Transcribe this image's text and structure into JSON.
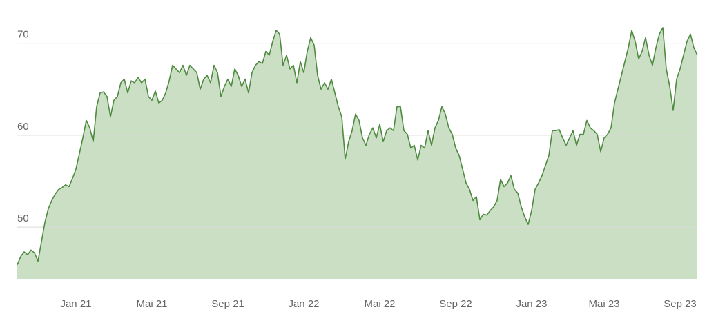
{
  "chart_data": {
    "type": "area",
    "categories": [
      null,
      null,
      null,
      null,
      null,
      null,
      null,
      null,
      null,
      null,
      null,
      null,
      null,
      null,
      null,
      null,
      null,
      "Jan 21",
      null,
      null,
      null,
      null,
      null,
      null,
      null,
      null,
      null,
      null,
      null,
      null,
      null,
      null,
      null,
      null,
      null,
      null,
      null,
      null,
      null,
      "Mai 21",
      null,
      null,
      null,
      null,
      null,
      null,
      null,
      null,
      null,
      null,
      null,
      null,
      null,
      null,
      null,
      null,
      null,
      null,
      null,
      null,
      null,
      "Sep 21",
      null,
      null,
      null,
      null,
      null,
      null,
      null,
      null,
      null,
      null,
      null,
      null,
      null,
      null,
      null,
      null,
      null,
      null,
      null,
      null,
      null,
      "Jan 22",
      null,
      null,
      null,
      null,
      null,
      null,
      null,
      null,
      null,
      null,
      null,
      null,
      null,
      null,
      null,
      null,
      null,
      null,
      null,
      null,
      null,
      "Mai 22",
      null,
      null,
      null,
      null,
      null,
      null,
      null,
      null,
      null,
      null,
      null,
      null,
      null,
      null,
      null,
      null,
      null,
      null,
      null,
      null,
      null,
      "Sep 22",
      null,
      null,
      null,
      null,
      null,
      null,
      null,
      null,
      null,
      null,
      null,
      null,
      null,
      null,
      null,
      null,
      null,
      null,
      null,
      null,
      null,
      "Jan 23",
      null,
      null,
      null,
      null,
      null,
      null,
      null,
      null,
      null,
      null,
      null,
      null,
      null,
      null,
      null,
      null,
      null,
      null,
      null,
      null,
      "Mai 23",
      null,
      null,
      null,
      null,
      null,
      null,
      null,
      null,
      null,
      null,
      null,
      null,
      null,
      null,
      null,
      null,
      null,
      null,
      null,
      null,
      null,
      "Sep 23",
      null,
      null,
      null,
      null,
      null
    ],
    "values": [
      45.9,
      46.8,
      47.3,
      47.0,
      47.5,
      47.2,
      46.3,
      48.4,
      50.5,
      52.0,
      52.9,
      53.6,
      54.1,
      54.3,
      54.6,
      54.4,
      55.3,
      56.3,
      58.0,
      59.7,
      61.6,
      60.8,
      59.3,
      63.1,
      64.6,
      64.7,
      64.2,
      62.0,
      63.8,
      64.2,
      65.7,
      66.1,
      64.6,
      65.9,
      65.7,
      66.3,
      65.7,
      66.1,
      64.2,
      63.8,
      64.8,
      63.5,
      63.8,
      64.6,
      65.9,
      67.6,
      67.2,
      66.8,
      67.6,
      66.5,
      67.6,
      67.2,
      66.8,
      65.0,
      66.1,
      66.5,
      65.7,
      67.6,
      66.8,
      64.2,
      65.3,
      66.1,
      65.3,
      67.2,
      66.5,
      65.3,
      66.1,
      64.6,
      66.8,
      67.6,
      68.0,
      67.8,
      69.1,
      68.7,
      70.2,
      71.4,
      71.0,
      67.6,
      68.7,
      67.2,
      67.6,
      65.7,
      68.0,
      66.8,
      69.1,
      70.6,
      69.8,
      66.5,
      65.0,
      65.7,
      65.0,
      66.1,
      64.6,
      63.1,
      62.0,
      57.4,
      59.3,
      60.5,
      62.3,
      61.6,
      59.7,
      58.9,
      60.1,
      60.8,
      59.7,
      61.2,
      59.3,
      60.5,
      60.8,
      60.5,
      63.1,
      63.1,
      60.5,
      60.1,
      58.6,
      58.9,
      57.3,
      58.9,
      58.6,
      60.5,
      58.9,
      60.8,
      61.6,
      63.1,
      62.3,
      60.8,
      60.1,
      58.6,
      57.8,
      56.3,
      54.8,
      54.1,
      52.9,
      53.3,
      50.8,
      51.4,
      51.3,
      51.8,
      52.2,
      52.9,
      55.2,
      54.4,
      54.8,
      55.6,
      54.1,
      53.7,
      52.2,
      51.1,
      50.3,
      51.8,
      54.1,
      54.8,
      55.6,
      56.7,
      57.8,
      60.5,
      60.5,
      60.6,
      59.7,
      58.9,
      59.7,
      60.5,
      58.9,
      60.1,
      60.1,
      61.6,
      60.8,
      60.5,
      60.1,
      58.2,
      59.7,
      60.1,
      60.8,
      63.5,
      65.0,
      66.5,
      68.0,
      69.5,
      71.4,
      70.2,
      68.3,
      69.1,
      70.6,
      68.7,
      67.6,
      69.5,
      71.0,
      71.7,
      67.2,
      65.3,
      62.7,
      66.1,
      67.2,
      68.7,
      70.2,
      71.0,
      69.5,
      68.7
    ],
    "color": "#4f8a41",
    "fill": "#cadfc4",
    "ylim": [
      44.3,
      74.7
    ],
    "yticks": [
      50,
      60,
      70
    ],
    "grid": true
  }
}
